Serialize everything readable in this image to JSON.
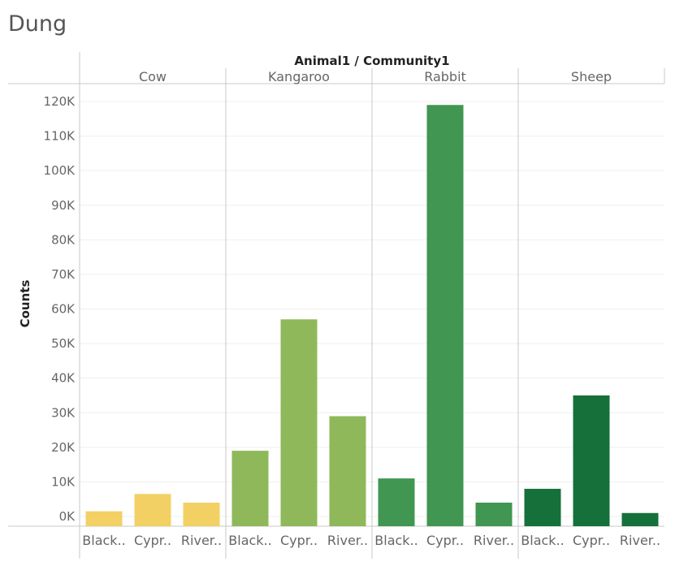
{
  "title": "Dung",
  "chart_data": {
    "type": "bar",
    "title": "Dung",
    "column_header": "Animal1 / Community1",
    "ylabel": "Counts",
    "ylim": [
      0,
      122000
    ],
    "yticks": [
      0,
      10000,
      20000,
      30000,
      40000,
      50000,
      60000,
      70000,
      80000,
      90000,
      100000,
      110000,
      120000
    ],
    "ytick_labels": [
      "0K",
      "10K",
      "20K",
      "30K",
      "40K",
      "50K",
      "60K",
      "70K",
      "80K",
      "90K",
      "100K",
      "110K",
      "120K"
    ],
    "grid": true,
    "panels": [
      {
        "name": "Cow",
        "color": "#f2d064",
        "categories": [
          "Black..",
          "Cypr..",
          "River.."
        ],
        "values": [
          1500,
          6500,
          4000
        ]
      },
      {
        "name": "Kangaroo",
        "color": "#8fb85a",
        "categories": [
          "Black..",
          "Cypr..",
          "River.."
        ],
        "values": [
          19000,
          57000,
          29000
        ]
      },
      {
        "name": "Rabbit",
        "color": "#419651",
        "categories": [
          "Black..",
          "Cypr..",
          "River.."
        ],
        "values": [
          11000,
          119000,
          4000
        ]
      },
      {
        "name": "Sheep",
        "color": "#16703a",
        "categories": [
          "Black..",
          "Cypr..",
          "River.."
        ],
        "values": [
          8000,
          35000,
          1000
        ]
      }
    ]
  }
}
